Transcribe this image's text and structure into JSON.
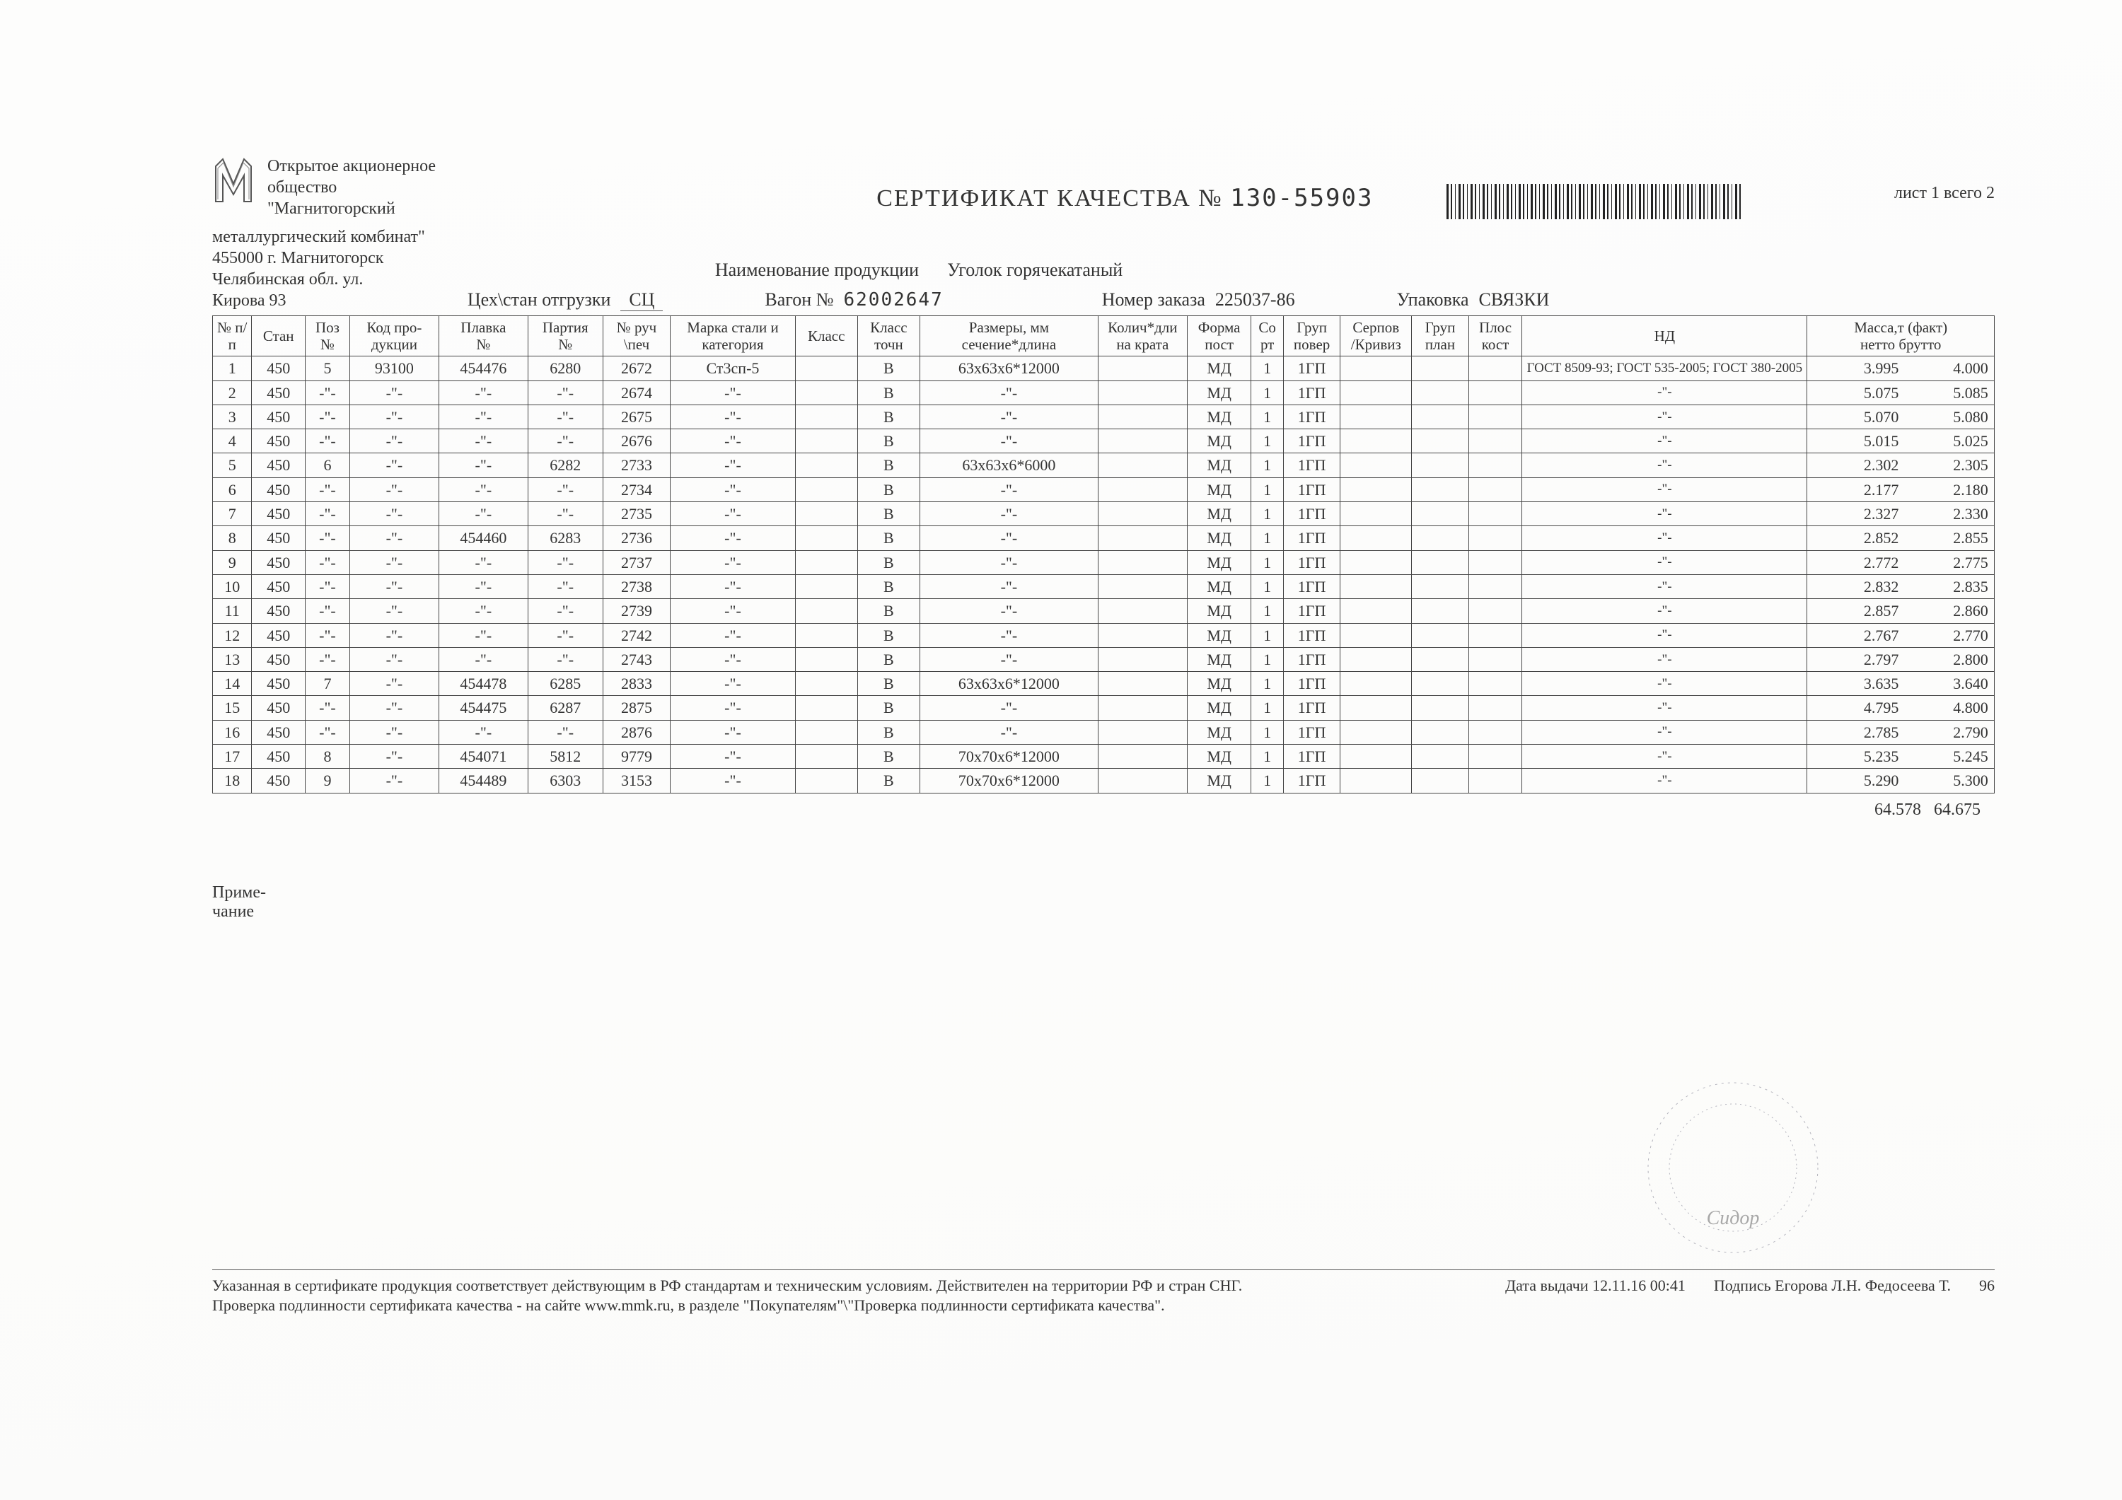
{
  "colors": {
    "text": "#333333",
    "border": "#444444",
    "background": "#fefefe"
  },
  "fontsizes": {
    "title": 34,
    "body": 24,
    "table": 22,
    "header": 21
  },
  "header": {
    "cert_title_prefix": "СЕРТИФИКАТ КАЧЕСТВА №",
    "cert_number": "130-55903",
    "sheet_label": "лист 1 всего 2"
  },
  "company": {
    "line1": "Открытое акционерное",
    "line2": "общество",
    "line3": "\"Магнитогорский",
    "line4": "металлургический комбинат\"",
    "addr1": "455000 г. Магнитогорск",
    "addr2": "Челябинская обл. ул.",
    "addr3": "Кирова 93"
  },
  "product": {
    "label": "Наименование продукции",
    "value": "Уголок горячекатаный"
  },
  "meta": {
    "shop_label": "Цех\\стан отгрузки",
    "shop_value": "СЦ",
    "wagon_label": "Вагон №",
    "wagon_value": "62002647",
    "order_label": "Номер заказа",
    "order_value": "225037-86",
    "pack_label": "Упаковка",
    "pack_value": "СВЯЗКИ"
  },
  "table": {
    "columns": [
      "№ п/п",
      "Стан",
      "Поз №",
      "Код про-\nдукции",
      "Плавка\n№",
      "Партия\n№",
      "№ руч\n\\печ",
      "Марка стали и\nкатегория",
      "Класс",
      "Класс\nточн",
      "Размеры, мм\nсечение*длина",
      "Колич*дли\nна крата",
      "Форма\nпост",
      "Со\nрт",
      "Груп\nповер",
      "Серпов\n/Кривиз",
      "Груп\nплан",
      "Плос\nкост",
      "НД",
      "Масса,т (факт)\nнетто  брутто"
    ],
    "col_widths_pct": [
      2.2,
      3,
      2.5,
      5,
      5,
      4.2,
      3.8,
      7,
      3.5,
      3.5,
      10,
      5,
      3.6,
      1.8,
      3.2,
      4,
      3.2,
      3,
      16,
      10.5
    ],
    "ditto": "-\"-",
    "rows": [
      {
        "n": "1",
        "stan": "450",
        "poz": "5",
        "kod": "93100",
        "plav": "454476",
        "part": "6280",
        "ruch": "2672",
        "mark": "Ст3сп-5",
        "klass": "",
        "tochn": "В",
        "razm": "63х63х6*12000",
        "kol": "",
        "forma": "МД",
        "sort": "1",
        "grup": "1ГП",
        "serp": "",
        "gplan": "",
        "plos": "",
        "nd": "ГОСТ 8509-93; ГОСТ 535-2005; ГОСТ 380-2005",
        "netto": "3.995",
        "brutto": "4.000"
      },
      {
        "n": "2",
        "stan": "450",
        "poz": "-\"-",
        "kod": "-\"-",
        "plav": "-\"-",
        "part": "-\"-",
        "ruch": "2674",
        "mark": "-\"-",
        "klass": "",
        "tochn": "В",
        "razm": "-\"-",
        "kol": "",
        "forma": "МД",
        "sort": "1",
        "grup": "1ГП",
        "serp": "",
        "gplan": "",
        "plos": "",
        "nd": "-\"-",
        "netto": "5.075",
        "brutto": "5.085"
      },
      {
        "n": "3",
        "stan": "450",
        "poz": "-\"-",
        "kod": "-\"-",
        "plav": "-\"-",
        "part": "-\"-",
        "ruch": "2675",
        "mark": "-\"-",
        "klass": "",
        "tochn": "В",
        "razm": "-\"-",
        "kol": "",
        "forma": "МД",
        "sort": "1",
        "grup": "1ГП",
        "serp": "",
        "gplan": "",
        "plos": "",
        "nd": "-\"-",
        "netto": "5.070",
        "brutto": "5.080"
      },
      {
        "n": "4",
        "stan": "450",
        "poz": "-\"-",
        "kod": "-\"-",
        "plav": "-\"-",
        "part": "-\"-",
        "ruch": "2676",
        "mark": "-\"-",
        "klass": "",
        "tochn": "В",
        "razm": "-\"-",
        "kol": "",
        "forma": "МД",
        "sort": "1",
        "grup": "1ГП",
        "serp": "",
        "gplan": "",
        "plos": "",
        "nd": "-\"-",
        "netto": "5.015",
        "brutto": "5.025"
      },
      {
        "n": "5",
        "stan": "450",
        "poz": "6",
        "kod": "-\"-",
        "plav": "-\"-",
        "part": "6282",
        "ruch": "2733",
        "mark": "-\"-",
        "klass": "",
        "tochn": "В",
        "razm": "63х63х6*6000",
        "kol": "",
        "forma": "МД",
        "sort": "1",
        "grup": "1ГП",
        "serp": "",
        "gplan": "",
        "plos": "",
        "nd": "-\"-",
        "netto": "2.302",
        "brutto": "2.305"
      },
      {
        "n": "6",
        "stan": "450",
        "poz": "-\"-",
        "kod": "-\"-",
        "plav": "-\"-",
        "part": "-\"-",
        "ruch": "2734",
        "mark": "-\"-",
        "klass": "",
        "tochn": "В",
        "razm": "-\"-",
        "kol": "",
        "forma": "МД",
        "sort": "1",
        "grup": "1ГП",
        "serp": "",
        "gplan": "",
        "plos": "",
        "nd": "-\"-",
        "netto": "2.177",
        "brutto": "2.180"
      },
      {
        "n": "7",
        "stan": "450",
        "poz": "-\"-",
        "kod": "-\"-",
        "plav": "-\"-",
        "part": "-\"-",
        "ruch": "2735",
        "mark": "-\"-",
        "klass": "",
        "tochn": "В",
        "razm": "-\"-",
        "kol": "",
        "forma": "МД",
        "sort": "1",
        "grup": "1ГП",
        "serp": "",
        "gplan": "",
        "plos": "",
        "nd": "-\"-",
        "netto": "2.327",
        "brutto": "2.330"
      },
      {
        "n": "8",
        "stan": "450",
        "poz": "-\"-",
        "kod": "-\"-",
        "plav": "454460",
        "part": "6283",
        "ruch": "2736",
        "mark": "-\"-",
        "klass": "",
        "tochn": "В",
        "razm": "-\"-",
        "kol": "",
        "forma": "МД",
        "sort": "1",
        "grup": "1ГП",
        "serp": "",
        "gplan": "",
        "plos": "",
        "nd": "-\"-",
        "netto": "2.852",
        "brutto": "2.855"
      },
      {
        "n": "9",
        "stan": "450",
        "poz": "-\"-",
        "kod": "-\"-",
        "plav": "-\"-",
        "part": "-\"-",
        "ruch": "2737",
        "mark": "-\"-",
        "klass": "",
        "tochn": "В",
        "razm": "-\"-",
        "kol": "",
        "forma": "МД",
        "sort": "1",
        "grup": "1ГП",
        "serp": "",
        "gplan": "",
        "plos": "",
        "nd": "-\"-",
        "netto": "2.772",
        "brutto": "2.775"
      },
      {
        "n": "10",
        "stan": "450",
        "poz": "-\"-",
        "kod": "-\"-",
        "plav": "-\"-",
        "part": "-\"-",
        "ruch": "2738",
        "mark": "-\"-",
        "klass": "",
        "tochn": "В",
        "razm": "-\"-",
        "kol": "",
        "forma": "МД",
        "sort": "1",
        "grup": "1ГП",
        "serp": "",
        "gplan": "",
        "plos": "",
        "nd": "-\"-",
        "netto": "2.832",
        "brutto": "2.835"
      },
      {
        "n": "11",
        "stan": "450",
        "poz": "-\"-",
        "kod": "-\"-",
        "plav": "-\"-",
        "part": "-\"-",
        "ruch": "2739",
        "mark": "-\"-",
        "klass": "",
        "tochn": "В",
        "razm": "-\"-",
        "kol": "",
        "forma": "МД",
        "sort": "1",
        "grup": "1ГП",
        "serp": "",
        "gplan": "",
        "plos": "",
        "nd": "-\"-",
        "netto": "2.857",
        "brutto": "2.860"
      },
      {
        "n": "12",
        "stan": "450",
        "poz": "-\"-",
        "kod": "-\"-",
        "plav": "-\"-",
        "part": "-\"-",
        "ruch": "2742",
        "mark": "-\"-",
        "klass": "",
        "tochn": "В",
        "razm": "-\"-",
        "kol": "",
        "forma": "МД",
        "sort": "1",
        "grup": "1ГП",
        "serp": "",
        "gplan": "",
        "plos": "",
        "nd": "-\"-",
        "netto": "2.767",
        "brutto": "2.770"
      },
      {
        "n": "13",
        "stan": "450",
        "poz": "-\"-",
        "kod": "-\"-",
        "plav": "-\"-",
        "part": "-\"-",
        "ruch": "2743",
        "mark": "-\"-",
        "klass": "",
        "tochn": "В",
        "razm": "-\"-",
        "kol": "",
        "forma": "МД",
        "sort": "1",
        "grup": "1ГП",
        "serp": "",
        "gplan": "",
        "plos": "",
        "nd": "-\"-",
        "netto": "2.797",
        "brutto": "2.800"
      },
      {
        "n": "14",
        "stan": "450",
        "poz": "7",
        "kod": "-\"-",
        "plav": "454478",
        "part": "6285",
        "ruch": "2833",
        "mark": "-\"-",
        "klass": "",
        "tochn": "В",
        "razm": "63х63х6*12000",
        "kol": "",
        "forma": "МД",
        "sort": "1",
        "grup": "1ГП",
        "serp": "",
        "gplan": "",
        "plos": "",
        "nd": "-\"-",
        "netto": "3.635",
        "brutto": "3.640"
      },
      {
        "n": "15",
        "stan": "450",
        "poz": "-\"-",
        "kod": "-\"-",
        "plav": "454475",
        "part": "6287",
        "ruch": "2875",
        "mark": "-\"-",
        "klass": "",
        "tochn": "В",
        "razm": "-\"-",
        "kol": "",
        "forma": "МД",
        "sort": "1",
        "grup": "1ГП",
        "serp": "",
        "gplan": "",
        "plos": "",
        "nd": "-\"-",
        "netto": "4.795",
        "brutto": "4.800"
      },
      {
        "n": "16",
        "stan": "450",
        "poz": "-\"-",
        "kod": "-\"-",
        "plav": "-\"-",
        "part": "-\"-",
        "ruch": "2876",
        "mark": "-\"-",
        "klass": "",
        "tochn": "В",
        "razm": "-\"-",
        "kol": "",
        "forma": "МД",
        "sort": "1",
        "grup": "1ГП",
        "serp": "",
        "gplan": "",
        "plos": "",
        "nd": "-\"-",
        "netto": "2.785",
        "brutto": "2.790"
      },
      {
        "n": "17",
        "stan": "450",
        "poz": "8",
        "kod": "-\"-",
        "plav": "454071",
        "part": "5812",
        "ruch": "9779",
        "mark": "-\"-",
        "klass": "",
        "tochn": "В",
        "razm": "70х70х6*12000",
        "kol": "",
        "forma": "МД",
        "sort": "1",
        "grup": "1ГП",
        "serp": "",
        "gplan": "",
        "plos": "",
        "nd": "-\"-",
        "netto": "5.235",
        "brutto": "5.245"
      },
      {
        "n": "18",
        "stan": "450",
        "poz": "9",
        "kod": "-\"-",
        "plav": "454489",
        "part": "6303",
        "ruch": "3153",
        "mark": "-\"-",
        "klass": "",
        "tochn": "В",
        "razm": "70х70х6*12000",
        "kol": "",
        "forma": "МД",
        "sort": "1",
        "grup": "1ГП",
        "serp": "",
        "gplan": "",
        "plos": "",
        "nd": "-\"-",
        "netto": "5.290",
        "brutto": "5.300"
      }
    ],
    "totals": {
      "netto": "64.578",
      "brutto": "64.675"
    }
  },
  "note": {
    "label": "Приме-",
    "label2": "чание"
  },
  "footer": {
    "disclaimer1": "Указанная в сертификате продукция соответствует действующим в РФ стандартам и техническим условиям. Действителен на территории РФ и стран СНГ.",
    "disclaimer2": "Проверка подлинности сертификата качества - на сайте www.mmk.ru, в разделе \"Покупателям\"\\\"Проверка подлинности сертификата качества\".",
    "date_label": "Дата выдачи",
    "date_value": "12.11.16 00:41",
    "sign_label": "Подпись Егорова Л.Н. Федосеева Т.",
    "page_num": "96"
  }
}
